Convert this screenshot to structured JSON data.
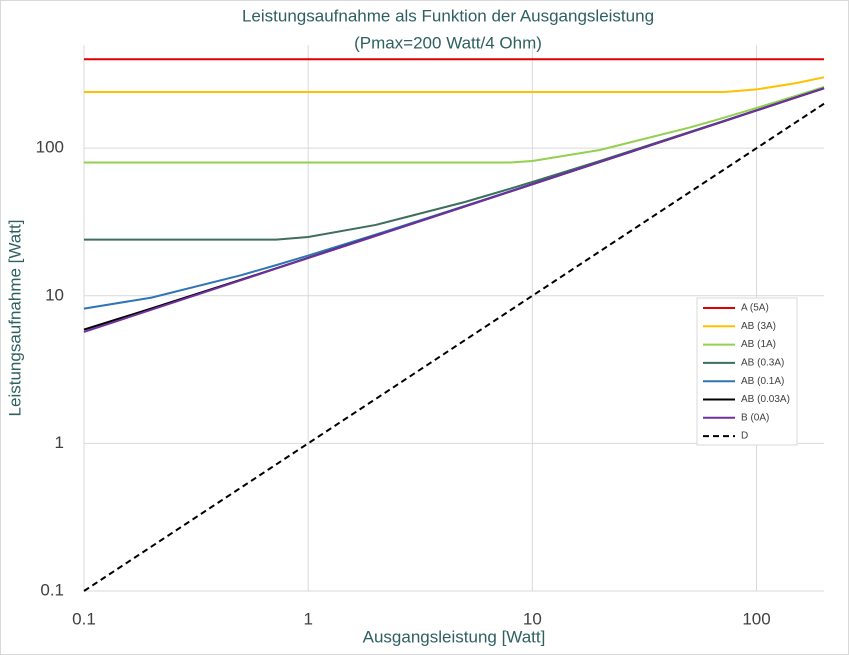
{
  "chart_data": {
    "type": "line",
    "title": "Leistungsaufnahme  als Funktion der Ausgangsleistung",
    "subtitle": "(Pmax=200 Watt/4 Ohm)",
    "x_label": "Ausgangsleistung  [Watt]",
    "y_label": "Leistungsaufnahme  [Watt]",
    "x": [
      0.1,
      0.2,
      0.5,
      0.72,
      1,
      2,
      5,
      8,
      10,
      20,
      50,
      72,
      100,
      150,
      200
    ],
    "series": [
      {
        "name": "A (5A)",
        "color": "#e00000",
        "values": [
          400,
          400,
          400,
          400,
          400,
          400,
          400,
          400,
          400,
          400,
          400,
          400,
          400,
          400,
          400
        ]
      },
      {
        "name": "AB (3A)",
        "color": "#ffc000",
        "values": [
          240,
          240,
          240,
          240,
          240,
          240,
          240,
          240,
          240,
          240,
          240,
          240,
          250.0,
          275.9,
          302.0
        ]
      },
      {
        "name": "AB (1A)",
        "color": "#92d050",
        "values": [
          80,
          80,
          80,
          80,
          80,
          80,
          80,
          80,
          81.84,
          97.23,
          137.6,
          161.3,
          187.3,
          226.4,
          259.7
        ]
      },
      {
        "name": "AB (0.3A)",
        "color": "#3e6e5e",
        "values": [
          24,
          24,
          24,
          24,
          25.0,
          30.2,
          43.19,
          53.23,
          58.99,
          81.96,
          128.2,
          153.5,
          180.7,
          221.0,
          255.1
        ]
      },
      {
        "name": "AB (0.1A)",
        "color": "#2e75b6",
        "values": [
          8.18,
          9.72,
          13.76,
          16.13,
          18.73,
          25.97,
          40.58,
          51.18,
          57.16,
          80.67,
          127.4,
          152.9,
          180.2,
          220.6,
          254.7
        ]
      },
      {
        "name": "AB (0.03A)",
        "color": "#000000",
        "values": [
          5.9,
          8.2,
          12.82,
          15.35,
          18.07,
          25.51,
          40.28,
          50.94,
          56.95,
          80.54,
          127.3,
          152.8,
          180.1,
          220.5,
          254.6
        ]
      },
      {
        "name": "B (0A)",
        "color": "#7030a0",
        "values": [
          5.69,
          8.05,
          12.73,
          15.28,
          18.01,
          25.46,
          40.26,
          50.93,
          56.94,
          80.53,
          127.3,
          152.8,
          180.1,
          220.5,
          254.6
        ]
      },
      {
        "name": "D",
        "color": "#000000",
        "dashed": true,
        "values": [
          0.1,
          0.2,
          0.5,
          0.72,
          1,
          2,
          5,
          8,
          10,
          20,
          50,
          72,
          100,
          150,
          200
        ]
      }
    ],
    "xlim": [
      0.1,
      200
    ],
    "ylim": [
      0.1,
      500
    ],
    "xticks": [
      0.1,
      1,
      10,
      100
    ],
    "yticks": [
      0.1,
      1,
      10,
      100
    ],
    "log_x": true,
    "log_y": true,
    "grid": true,
    "legend": "right"
  }
}
